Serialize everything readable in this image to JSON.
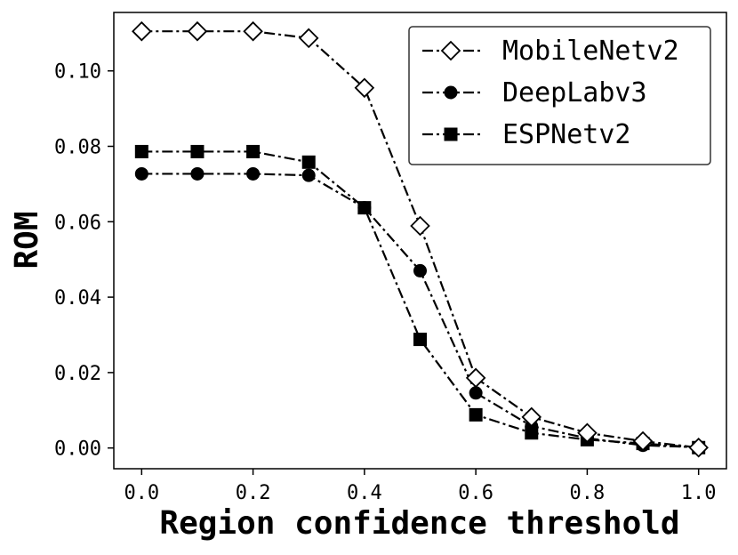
{
  "chart_data": {
    "type": "line",
    "xlabel": "Region confidence threshold",
    "ylabel": "ROM",
    "xlim": [
      -0.05,
      1.05
    ],
    "ylim": [
      -0.0055,
      0.1155
    ],
    "xticks": [
      0.0,
      0.2,
      0.4,
      0.6,
      0.8,
      1.0
    ],
    "xtick_labels": [
      "0.0",
      "0.2",
      "0.4",
      "0.6",
      "0.8",
      "1.0"
    ],
    "yticks": [
      0.0,
      0.02,
      0.04,
      0.06,
      0.08,
      0.1
    ],
    "ytick_labels": [
      "0.00",
      "0.02",
      "0.04",
      "0.06",
      "0.08",
      "0.10"
    ],
    "grid": false,
    "legend_position": "top-right",
    "x": [
      0.0,
      0.1,
      0.2,
      0.3,
      0.4,
      0.5,
      0.6,
      0.7,
      0.8,
      0.9,
      1.0
    ],
    "series": [
      {
        "name": "MobileNetv2",
        "marker": "diamond-open",
        "values": [
          0.1105,
          0.1105,
          0.1105,
          0.1087,
          0.0955,
          0.0589,
          0.0186,
          0.0082,
          0.004,
          0.0018,
          0.0001
        ]
      },
      {
        "name": "DeepLabv3",
        "marker": "circle-filled",
        "values": [
          0.0727,
          0.0727,
          0.0727,
          0.0723,
          0.0637,
          0.047,
          0.0146,
          0.0058,
          0.0026,
          0.0007,
          0.0002
        ]
      },
      {
        "name": "ESPNetv2",
        "marker": "square-filled",
        "values": [
          0.0786,
          0.0786,
          0.0786,
          0.0758,
          0.0637,
          0.0288,
          0.0088,
          0.004,
          0.0022,
          0.0012,
          0.0001
        ]
      }
    ],
    "line_style": "dash-dot",
    "line_color": "#000000"
  }
}
